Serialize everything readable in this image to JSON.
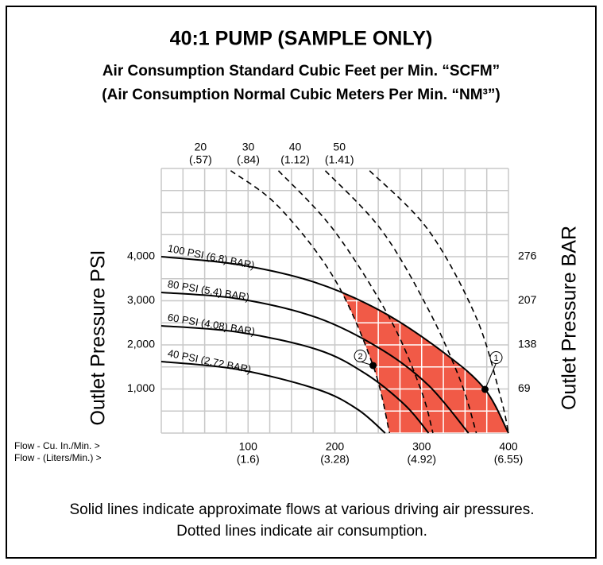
{
  "chart_data": {
    "type": "line",
    "title": "40:1 PUMP (SAMPLE ONLY)",
    "subtitle": [
      "Air Consumption Standard Cubic Feet per Min. “SCFM”",
      "(Air Consumption Normal Cubic Meters Per Min. “NM³”)"
    ],
    "xlabel": [
      "Flow - Cu. In./Min. >",
      "Flow - (Liters/Min.) >"
    ],
    "ylabel": "Outlet Pressure PSI",
    "y2label": "Outlet Pressure BAR",
    "xlim": [
      0,
      400
    ],
    "ylim": [
      0,
      6000
    ],
    "y2lim": [
      0,
      414
    ],
    "xticks": [
      100,
      200,
      300,
      400
    ],
    "xtick_sublabels": [
      "(1.6)",
      "(3.28)",
      "(4.92)",
      "(6.55)"
    ],
    "yticks": [
      {
        "value": 1000,
        "label": "1,000"
      },
      {
        "value": 2000,
        "label": "2,000"
      },
      {
        "value": 3000,
        "label": "3,000"
      },
      {
        "value": 4000,
        "label": "4,000"
      }
    ],
    "y2ticks": [
      69,
      138,
      207,
      276
    ],
    "grid": true,
    "grid_step": [
      25,
      500
    ],
    "region_color": "#f15a47",
    "series": [
      {
        "name": "100 PSI (6.8) BAR)",
        "color": "#000000",
        "style": "solid",
        "x": [
          0,
          89,
          176,
          254,
          327,
          373,
          400
        ],
        "values": [
          4000,
          3820,
          3424,
          2757,
          1802,
          991,
          0
        ]
      },
      {
        "name": "80 PSI (5.4) BAR)",
        "color": "#000000",
        "style": "solid",
        "x": [
          0,
          89,
          180,
          254,
          308,
          354
        ],
        "values": [
          3190,
          3045,
          2613,
          1892,
          1081,
          0
        ]
      },
      {
        "name": "60 PSI (4.08) BAR)",
        "color": "#000000",
        "style": "solid",
        "x": [
          0,
          89,
          180,
          235,
          281,
          308
        ],
        "values": [
          2433,
          2289,
          1892,
          1351,
          631,
          0
        ]
      },
      {
        "name": "40 PSI (2.72 BAR)",
        "color": "#000000",
        "style": "solid",
        "x": [
          0,
          89,
          180,
          226,
          258
        ],
        "values": [
          1622,
          1442,
          991,
          541,
          0
        ]
      },
      {
        "name": "20",
        "sublabel": "(.57)",
        "color": "#000000",
        "style": "dashed",
        "x": [
          80,
          135,
          199,
          244,
          263
        ],
        "values": [
          5950,
          5136,
          3514,
          1532,
          0
        ]
      },
      {
        "name": "30",
        "sublabel": "(.84)",
        "color": "#000000",
        "style": "dashed",
        "x": [
          135,
          199,
          263,
          299,
          313
        ],
        "values": [
          5950,
          4595,
          2613,
          991,
          0
        ]
      },
      {
        "name": "40",
        "sublabel": "(1.12)",
        "color": "#000000",
        "style": "dashed",
        "x": [
          189,
          254,
          308,
          345,
          363
        ],
        "values": [
          5950,
          4595,
          2793,
          1171,
          0
        ]
      },
      {
        "name": "50",
        "sublabel": "(1.41)",
        "color": "#000000",
        "style": "dashed",
        "x": [
          240,
          308,
          363,
          391,
          400
        ],
        "values": [
          5950,
          4595,
          2613,
          811,
          0
        ]
      }
    ],
    "markers": [
      {
        "label": "1",
        "x": 373,
        "y": 991
      },
      {
        "label": "2",
        "x": 244,
        "y": 1532
      }
    ],
    "note": "Solid lines indicate approximate flows at various driving air pressures. Dotted lines indicate air consumption."
  }
}
